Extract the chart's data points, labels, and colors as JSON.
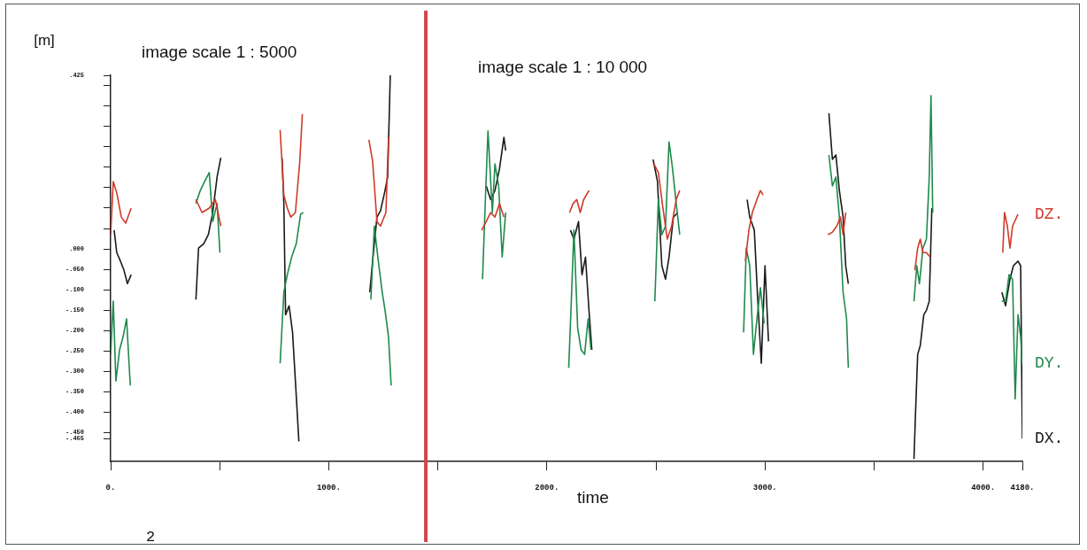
{
  "chart_data": {
    "type": "line",
    "xlabel": "time",
    "ylabel": "[m]",
    "xlim": [
      0,
      4180
    ],
    "xticks": [
      {
        "value": 0,
        "label": "0."
      },
      {
        "value": 500,
        "label": null
      },
      {
        "value": 1000,
        "label": "1000."
      },
      {
        "value": 1500,
        "label": null
      },
      {
        "value": 2000,
        "label": "2000."
      },
      {
        "value": 2500,
        "label": null
      },
      {
        "value": 3000,
        "label": "3000."
      },
      {
        "value": 3500,
        "label": null
      },
      {
        "value": 4000,
        "label": "4000."
      },
      {
        "value": 4180,
        "label": "4180."
      }
    ],
    "ylim": [
      -0.52,
      0.425
    ],
    "yticks": [
      {
        "value": 0.425,
        "label": ".425"
      },
      {
        "value": 0.4,
        "label": null
      },
      {
        "value": 0.35,
        "label": null
      },
      {
        "value": 0.3,
        "label": null
      },
      {
        "value": 0.25,
        "label": null
      },
      {
        "value": 0.2,
        "label": null
      },
      {
        "value": 0.15,
        "label": null
      },
      {
        "value": 0.1,
        "label": null
      },
      {
        "value": 0.05,
        "label": null
      },
      {
        "value": 0,
        "label": ".000"
      },
      {
        "value": -0.05,
        "label": "-.050"
      },
      {
        "value": -0.1,
        "label": "-.100"
      },
      {
        "value": -0.15,
        "label": "-.150"
      },
      {
        "value": -0.2,
        "label": "-.200"
      },
      {
        "value": -0.25,
        "label": "-.250"
      },
      {
        "value": -0.3,
        "label": "-.300"
      },
      {
        "value": -0.35,
        "label": "-.350"
      },
      {
        "value": -0.4,
        "label": "-.400"
      },
      {
        "value": -0.45,
        "label": "-.450"
      },
      {
        "value": -0.465,
        "label": "-.465"
      }
    ],
    "grid": false,
    "ref_lines": [
      {
        "axis": "x",
        "value": 1445,
        "color": "#d0464b"
      }
    ],
    "annotations": [
      "image scale 1 : 5000",
      "image scale 1 : 10 000",
      "2"
    ],
    "series": [
      {
        "name": "DZ.",
        "color": "#d03a2a",
        "x": [
          0,
          12,
          28,
          49,
          69,
          94,
          240,
          391,
          419,
          452,
          480,
          505,
          640,
          777,
          794,
          810,
          826,
          847,
          867,
          879,
          1030,
          1184,
          1201,
          1221,
          1237,
          1262,
          1274,
          1490,
          1701,
          1722,
          1742,
          1762,
          1783,
          1803,
          1950,
          2104,
          2120,
          2137,
          2153,
          2169,
          2193,
          2350,
          2491,
          2511,
          2532,
          2552,
          2572,
          2593,
          2609,
          2750,
          2910,
          2926,
          2942,
          2963,
          2979,
          2991,
          3150,
          3289,
          3309,
          3329,
          3346,
          3358,
          3370,
          3550,
          3687,
          3700,
          3712,
          3724,
          3740,
          3757,
          3950,
          4090,
          4098,
          4111,
          4123,
          4135,
          4160
        ],
        "values": [
          0.035,
          0.165,
          0.137,
          0.078,
          0.063,
          0.1,
          null,
          0.121,
          0.089,
          0.1,
          0.121,
          0.056,
          null,
          0.291,
          0.132,
          0.1,
          0.078,
          0.089,
          0.213,
          0.33,
          null,
          0.267,
          0.215,
          0.067,
          0.056,
          0.089,
          0.273,
          null,
          0.046,
          0.067,
          0.089,
          0.078,
          0.111,
          0.078,
          null,
          0.089,
          0.111,
          0.121,
          0.089,
          0.121,
          0.143,
          null,
          0.208,
          0.187,
          0.1,
          0.024,
          0.056,
          0.121,
          0.143,
          null,
          -0.03,
          0.046,
          0.089,
          0.121,
          0.143,
          0.132,
          null,
          0.035,
          0.041,
          0.056,
          0.078,
          0.035,
          0.089,
          null,
          -0.052,
          0.002,
          0.024,
          -0.009,
          -0.009,
          -0.02,
          null,
          -0.009,
          0.089,
          0.056,
          0.002,
          0.056,
          0.085
        ]
      },
      {
        "name": "DY.",
        "color": "#1f8a4c",
        "x": [
          0,
          12,
          24,
          41,
          57,
          73,
          90,
          240,
          391,
          411,
          431,
          452,
          468,
          488,
          501,
          640,
          777,
          794,
          810,
          830,
          851,
          871,
          883,
          1030,
          1193,
          1209,
          1225,
          1245,
          1258,
          1274,
          1286,
          1490,
          1705,
          1718,
          1730,
          1750,
          1762,
          1779,
          1795,
          1811,
          1950,
          2100,
          2112,
          2124,
          2141,
          2157,
          2173,
          2189,
          2202,
          2350,
          2495,
          2511,
          2527,
          2544,
          2560,
          2576,
          2593,
          2609,
          2750,
          2902,
          2914,
          2930,
          2947,
          2963,
          2979,
          2996,
          3150,
          3293,
          3309,
          3325,
          3341,
          3358,
          3374,
          3382,
          3550,
          3683,
          3696,
          3708,
          3724,
          3740,
          3753,
          3761,
          3769,
          3950,
          4086,
          4103,
          4119,
          4135,
          4147,
          4160,
          4172,
          4180
        ],
        "values": [
          -0.258,
          -0.128,
          -0.323,
          -0.247,
          -0.215,
          -0.171,
          -0.334,
          null,
          0.111,
          0.143,
          0.165,
          0.187,
          0.067,
          0.111,
          -0.009,
          null,
          -0.28,
          -0.106,
          -0.063,
          -0.02,
          0.013,
          0.085,
          0.089,
          null,
          -0.124,
          0.056,
          -0.02,
          -0.106,
          -0.15,
          -0.215,
          -0.334,
          null,
          -0.074,
          0.121,
          0.289,
          0.089,
          0.208,
          0.154,
          -0.02,
          0.089,
          null,
          -0.291,
          -0.128,
          0.046,
          -0.193,
          -0.247,
          -0.258,
          -0.171,
          -0.247,
          null,
          -0.128,
          0.121,
          0.035,
          0.056,
          0.262,
          0.197,
          0.111,
          0.035,
          null,
          -0.204,
          0.002,
          -0.041,
          -0.258,
          -0.171,
          -0.095,
          -0.182,
          null,
          0.23,
          0.154,
          0.176,
          0.078,
          -0.106,
          -0.171,
          -0.291,
          null,
          -0.128,
          -0.041,
          -0.085,
          0.002,
          0.024,
          0.176,
          0.375,
          0.089,
          null,
          -0.128,
          -0.128,
          -0.063,
          -0.074,
          -0.367,
          -0.161,
          -0.215,
          -0.28
        ]
      },
      {
        "name": "DX.",
        "color": "#1a1a1a",
        "x": [
          16,
          28,
          45,
          61,
          77,
          94,
          240,
          391,
          403,
          427,
          448,
          468,
          488,
          505,
          640,
          786,
          794,
          802,
          818,
          834,
          847,
          863,
          1030,
          1188,
          1201,
          1221,
          1237,
          1258,
          1270,
          1282,
          1490,
          1722,
          1742,
          1762,
          1783,
          1803,
          1811,
          1950,
          2108,
          2124,
          2145,
          2161,
          2177,
          2193,
          2206,
          2350,
          2487,
          2507,
          2527,
          2544,
          2560,
          2580,
          2601,
          2750,
          2918,
          2930,
          2951,
          2967,
          2983,
          3000,
          3016,
          3150,
          3293,
          3309,
          3325,
          3341,
          3358,
          3370,
          3382,
          3550,
          3683,
          3691,
          3700,
          3712,
          3728,
          3740,
          3753,
          3765,
          3950,
          4086,
          4103,
          4123,
          4139,
          4160,
          4172,
          4176,
          4180
        ],
        "values": [
          0.046,
          -0.009,
          -0.03,
          -0.052,
          -0.085,
          -0.063,
          null,
          -0.124,
          0.002,
          0.013,
          0.035,
          0.089,
          0.176,
          0.223,
          null,
          0.223,
          0.111,
          -0.161,
          -0.139,
          -0.204,
          -0.323,
          -0.471,
          null,
          -0.106,
          -0.03,
          0.078,
          0.093,
          0.143,
          0.176,
          0.425,
          null,
          0.154,
          0.121,
          0.143,
          0.197,
          0.273,
          0.241,
          null,
          0.046,
          0.024,
          0.067,
          -0.063,
          -0.02,
          -0.15,
          -0.247,
          null,
          0.219,
          0.165,
          -0.041,
          -0.074,
          -0.02,
          0.078,
          0.089,
          null,
          0.121,
          0.078,
          0.046,
          -0.128,
          -0.28,
          -0.041,
          -0.226,
          null,
          0.332,
          0.219,
          0.23,
          0.143,
          0.078,
          -0.041,
          -0.085,
          null,
          -0.514,
          -0.388,
          -0.258,
          -0.236,
          -0.161,
          -0.15,
          -0.128,
          0.1,
          null,
          -0.106,
          -0.139,
          -0.074,
          -0.041,
          -0.03,
          -0.041,
          -0.258,
          -0.464
        ]
      }
    ]
  }
}
